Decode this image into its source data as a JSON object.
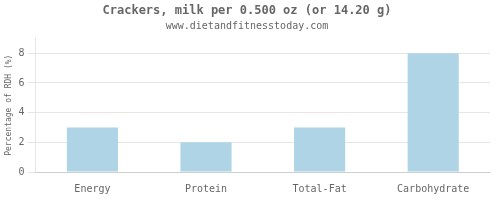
{
  "chart_data": {
    "type": "bar",
    "title": "Crackers, milk per 0.500 oz (or 14.20 g)",
    "subtitle": "www.dietandfitnesstoday.com",
    "categories": [
      "Energy",
      "Protein",
      "Total-Fat",
      "Carbohydrate"
    ],
    "values": [
      3.0,
      2.0,
      3.0,
      8.0
    ],
    "color": "#aed4e6",
    "ylabel": "Percentage of RDH (%)",
    "ylim": [
      0,
      9
    ],
    "yticks": [
      0,
      2,
      4,
      6,
      8
    ],
    "grid": true
  }
}
